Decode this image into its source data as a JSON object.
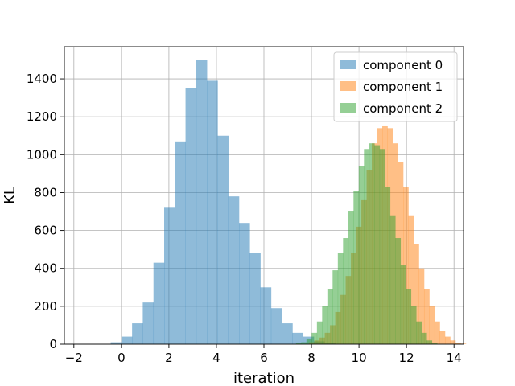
{
  "chart_data": {
    "type": "bar",
    "xlabel": "iteration",
    "ylabel": "KL",
    "xlim": [
      -2.4,
      14.4
    ],
    "ylim": [
      0,
      1570
    ],
    "xticks": [
      -2,
      0,
      2,
      4,
      6,
      8,
      10,
      12,
      14
    ],
    "xtick_labels": [
      "−2",
      "0",
      "2",
      "4",
      "6",
      "8",
      "10",
      "12",
      "14"
    ],
    "yticks": [
      0,
      200,
      400,
      600,
      800,
      1000,
      1200,
      1400
    ],
    "grid": true,
    "legend_position": "top-right",
    "series": [
      {
        "name": "component 0",
        "color": "#1f77b4",
        "opacity": 0.5,
        "bin_start": -0.45,
        "bin_width": 0.45,
        "values": [
          10,
          40,
          110,
          220,
          430,
          720,
          1070,
          1350,
          1500,
          1390,
          1100,
          780,
          640,
          480,
          300,
          190,
          110,
          60,
          40,
          15,
          5
        ]
      },
      {
        "name": "component 1",
        "color": "#ff7f0e",
        "opacity": 0.5,
        "bin_start": 7.9,
        "bin_width": 0.22,
        "values": [
          10,
          20,
          35,
          60,
          100,
          170,
          260,
          360,
          480,
          620,
          760,
          920,
          1060,
          1140,
          1150,
          1140,
          1060,
          960,
          830,
          680,
          530,
          400,
          290,
          200,
          120,
          70,
          40,
          20,
          8,
          3
        ]
      },
      {
        "name": "component 2",
        "color": "#2ca02c",
        "opacity": 0.5,
        "bin_start": 7.35,
        "bin_width": 0.22,
        "values": [
          5,
          10,
          30,
          60,
          120,
          200,
          290,
          390,
          480,
          560,
          700,
          810,
          940,
          1030,
          1060,
          1050,
          1030,
          830,
          680,
          560,
          420,
          290,
          200,
          120,
          60,
          20,
          6
        ]
      }
    ]
  }
}
